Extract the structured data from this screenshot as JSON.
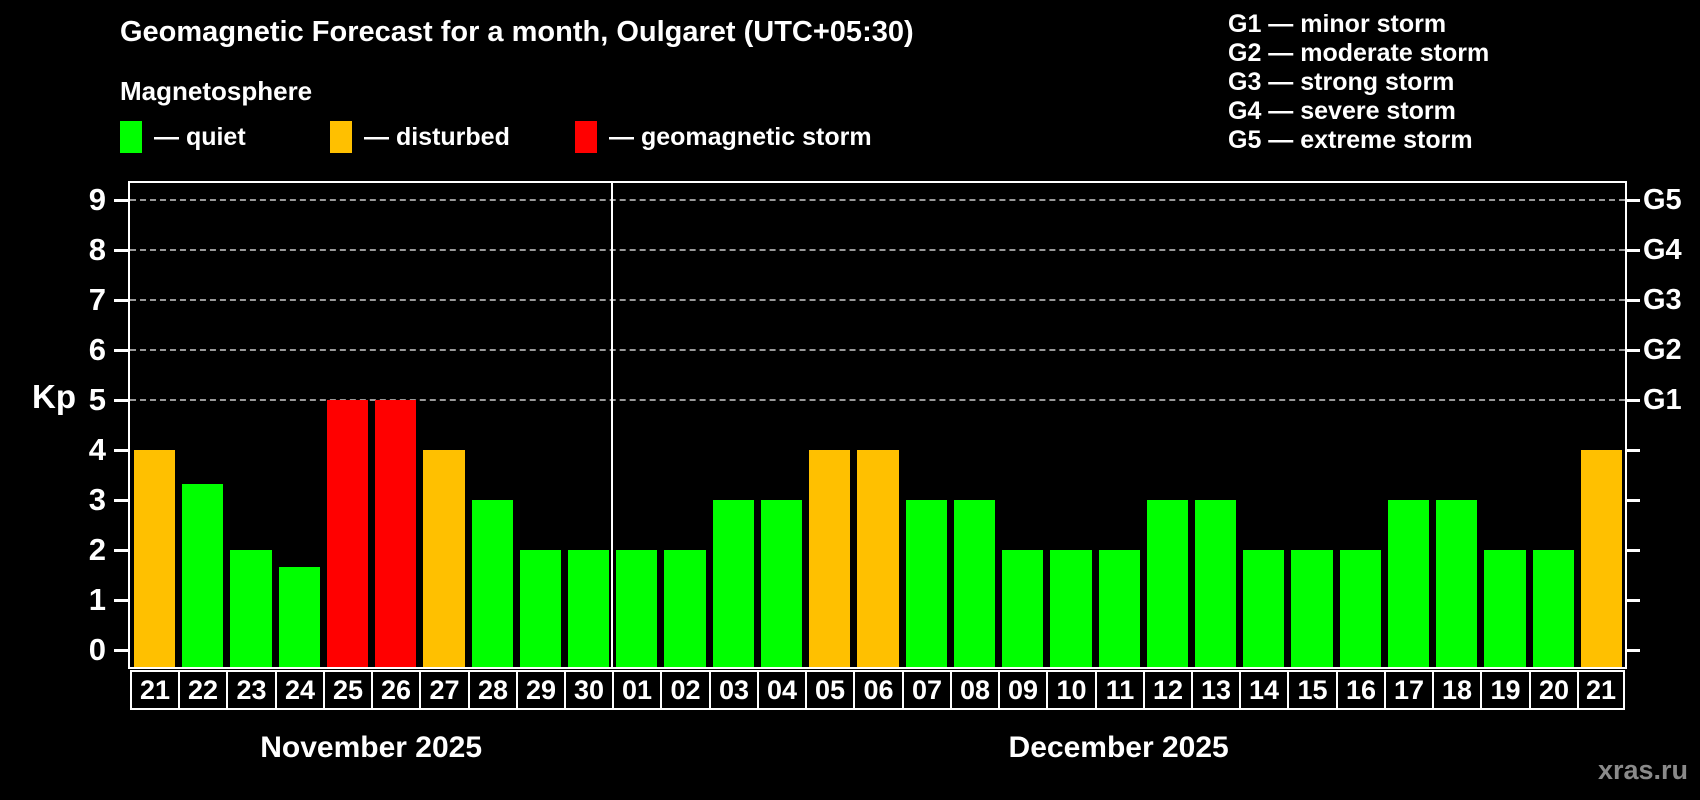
{
  "header": {
    "title": "Geomagnetic Forecast for a month, Oulgaret (UTC+05:30)",
    "subtitle": "Magnetosphere"
  },
  "legend": {
    "items": [
      {
        "key": "quiet",
        "swatch_color": "#00ff00",
        "label": "— quiet"
      },
      {
        "key": "disturbed",
        "swatch_color": "#ffc000",
        "label": "— disturbed"
      },
      {
        "key": "storm",
        "swatch_color": "#ff0000",
        "label": "— geomagnetic storm"
      }
    ]
  },
  "storm_scale_legend": {
    "lines": [
      "G1 — minor storm",
      "G2 — moderate storm",
      "G3 — strong storm",
      "G4 — severe storm",
      "G5 — extreme storm"
    ]
  },
  "watermark": "xras.ru",
  "chart_data": {
    "type": "bar",
    "title": "Geomagnetic Forecast for a month, Oulgaret (UTC+05:30)",
    "ylabel": "Kp",
    "ylim": [
      0,
      9.4
    ],
    "yticks": [
      0,
      1,
      2,
      3,
      4,
      5,
      6,
      7,
      8,
      9
    ],
    "grid": {
      "dashed_horizontal_at_kp": [
        5,
        6,
        7,
        8,
        9
      ]
    },
    "g_levels": [
      {
        "kp": 5,
        "label": "G1"
      },
      {
        "kp": 6,
        "label": "G2"
      },
      {
        "kp": 7,
        "label": "G3"
      },
      {
        "kp": 8,
        "label": "G4"
      },
      {
        "kp": 9,
        "label": "G5"
      }
    ],
    "status_colors": {
      "quiet": "#00ff00",
      "disturbed": "#ffc000",
      "storm": "#ff0000"
    },
    "months": [
      {
        "label": "November 2025",
        "num_days": 10
      },
      {
        "label": "December 2025",
        "num_days": 21
      }
    ],
    "bars": [
      {
        "day": "21",
        "kp": 4,
        "status": "disturbed"
      },
      {
        "day": "22",
        "kp": 3.33,
        "status": "quiet"
      },
      {
        "day": "23",
        "kp": 2,
        "status": "quiet"
      },
      {
        "day": "24",
        "kp": 1.67,
        "status": "quiet"
      },
      {
        "day": "25",
        "kp": 5,
        "status": "storm"
      },
      {
        "day": "26",
        "kp": 5,
        "status": "storm"
      },
      {
        "day": "27",
        "kp": 4,
        "status": "disturbed"
      },
      {
        "day": "28",
        "kp": 3,
        "status": "quiet"
      },
      {
        "day": "29",
        "kp": 2,
        "status": "quiet"
      },
      {
        "day": "30",
        "kp": 2,
        "status": "quiet"
      },
      {
        "day": "01",
        "kp": 2,
        "status": "quiet"
      },
      {
        "day": "02",
        "kp": 2,
        "status": "quiet"
      },
      {
        "day": "03",
        "kp": 3,
        "status": "quiet"
      },
      {
        "day": "04",
        "kp": 3,
        "status": "quiet"
      },
      {
        "day": "05",
        "kp": 4,
        "status": "disturbed"
      },
      {
        "day": "06",
        "kp": 4,
        "status": "disturbed"
      },
      {
        "day": "07",
        "kp": 3,
        "status": "quiet"
      },
      {
        "day": "08",
        "kp": 3,
        "status": "quiet"
      },
      {
        "day": "09",
        "kp": 2,
        "status": "quiet"
      },
      {
        "day": "10",
        "kp": 2,
        "status": "quiet"
      },
      {
        "day": "11",
        "kp": 2,
        "status": "quiet"
      },
      {
        "day": "12",
        "kp": 3,
        "status": "quiet"
      },
      {
        "day": "13",
        "kp": 3,
        "status": "quiet"
      },
      {
        "day": "14",
        "kp": 2,
        "status": "quiet"
      },
      {
        "day": "15",
        "kp": 2,
        "status": "quiet"
      },
      {
        "day": "16",
        "kp": 2,
        "status": "quiet"
      },
      {
        "day": "17",
        "kp": 3,
        "status": "quiet"
      },
      {
        "day": "18",
        "kp": 3,
        "status": "quiet"
      },
      {
        "day": "19",
        "kp": 2,
        "status": "quiet"
      },
      {
        "day": "20",
        "kp": 2,
        "status": "quiet"
      },
      {
        "day": "21",
        "kp": 4,
        "status": "disturbed"
      }
    ]
  }
}
